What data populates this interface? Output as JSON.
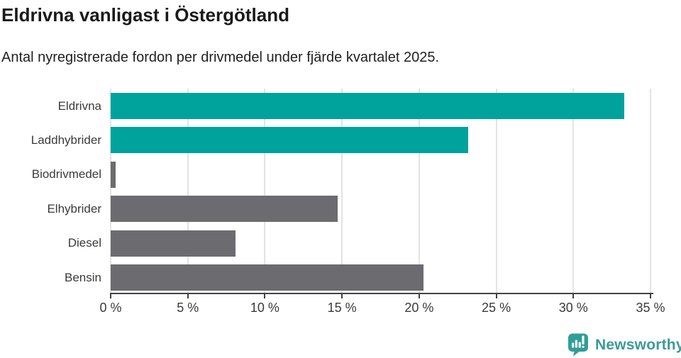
{
  "chart_data": {
    "type": "bar",
    "orientation": "horizontal",
    "title": "Eldrivna vanligast i Östergötland",
    "subtitle": "Antal nyregistrerade fordon per drivmedel under fjärde kvartalet 2025.",
    "categories": [
      "Eldrivna",
      "Laddhybrider",
      "Biodrivmedel",
      "Elhybrider",
      "Diesel",
      "Bensin"
    ],
    "values": [
      33.3,
      23.2,
      0.3,
      14.7,
      8.1,
      20.3
    ],
    "unit": "%",
    "bar_colors": [
      "#00a39b",
      "#00a39b",
      "#6b6b70",
      "#6b6b70",
      "#6b6b70",
      "#6b6b70"
    ],
    "xlabel": "",
    "ylabel": "",
    "xlim": [
      0,
      35
    ],
    "x_tick_values": [
      0,
      5,
      10,
      15,
      20,
      25,
      30,
      35
    ],
    "x_tick_labels": [
      "0 %",
      "5 %",
      "10 %",
      "15 %",
      "20 %",
      "25 %",
      "30 %",
      "35 %"
    ],
    "grid": "vertical-on",
    "legend": "none",
    "accent_color": "#00a39b",
    "neutral_color": "#6b6b70",
    "gridline_color": "#e3e3e3",
    "axis_color": "#424242"
  },
  "branding": {
    "wordmark": "Newsworthy",
    "logo_color": "#2f9e99"
  }
}
